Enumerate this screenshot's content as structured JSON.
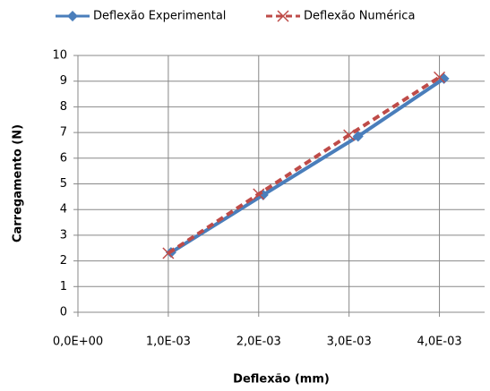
{
  "chart_data": {
    "type": "line",
    "xlabel": "Deflexão (mm)",
    "ylabel": "Carregamento (N)",
    "series": [
      {
        "name": "Deflexão Experimental",
        "color": "#4a7ebb",
        "marker": "diamond",
        "dash": false,
        "x": [
          0.00103,
          0.00205,
          0.0031,
          0.00405
        ],
        "values": [
          2.33,
          4.57,
          6.85,
          9.1
        ]
      },
      {
        "name": "Deflexão Numérica",
        "color": "#be4b48",
        "marker": "x",
        "dash": true,
        "x": [
          0.001,
          0.002,
          0.003,
          0.004
        ],
        "values": [
          2.3,
          4.6,
          6.9,
          9.15
        ]
      }
    ],
    "xlim": [
      0,
      0.0045
    ],
    "xticks": [
      {
        "value": 0,
        "label": "0,0E+00"
      },
      {
        "value": 0.001,
        "label": "1,0E-03"
      },
      {
        "value": 0.002,
        "label": "2,0E-03"
      },
      {
        "value": 0.003,
        "label": "3,0E-03"
      },
      {
        "value": 0.004,
        "label": "4,0E-03"
      }
    ],
    "ylim": [
      0,
      10
    ],
    "yticks": [
      0,
      1,
      2,
      3,
      4,
      5,
      6,
      7,
      8,
      9,
      10
    ],
    "grid": true,
    "legend": "top"
  }
}
